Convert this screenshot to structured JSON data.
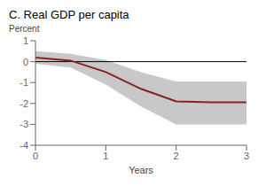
{
  "chart_data": {
    "type": "line",
    "title": "C. Real GDP per capita",
    "x_label": "Years",
    "y_label": "Percent",
    "x": [
      0,
      0.5,
      1.0,
      1.5,
      2.0,
      2.5,
      3.0
    ],
    "values": [
      0.2,
      0.05,
      -0.5,
      -1.3,
      -1.9,
      -1.95,
      -1.95
    ],
    "color": "#8b2020",
    "band": {
      "upper": [
        0.5,
        0.38,
        0.08,
        -0.5,
        -0.95,
        -0.95,
        -0.95
      ],
      "lower": [
        -0.1,
        -0.28,
        -1.1,
        -2.15,
        -3.0,
        -3.0,
        -3.0
      ],
      "color": "#c8c8c8"
    },
    "reference_line": {
      "y": 0,
      "color": "#000000"
    },
    "xlim": [
      0,
      3
    ],
    "ylim": [
      -4,
      1
    ],
    "xticks": [
      0,
      1,
      2,
      3
    ],
    "yticks": [
      -4,
      -3,
      -2,
      -1,
      0,
      1
    ],
    "grid": false
  }
}
